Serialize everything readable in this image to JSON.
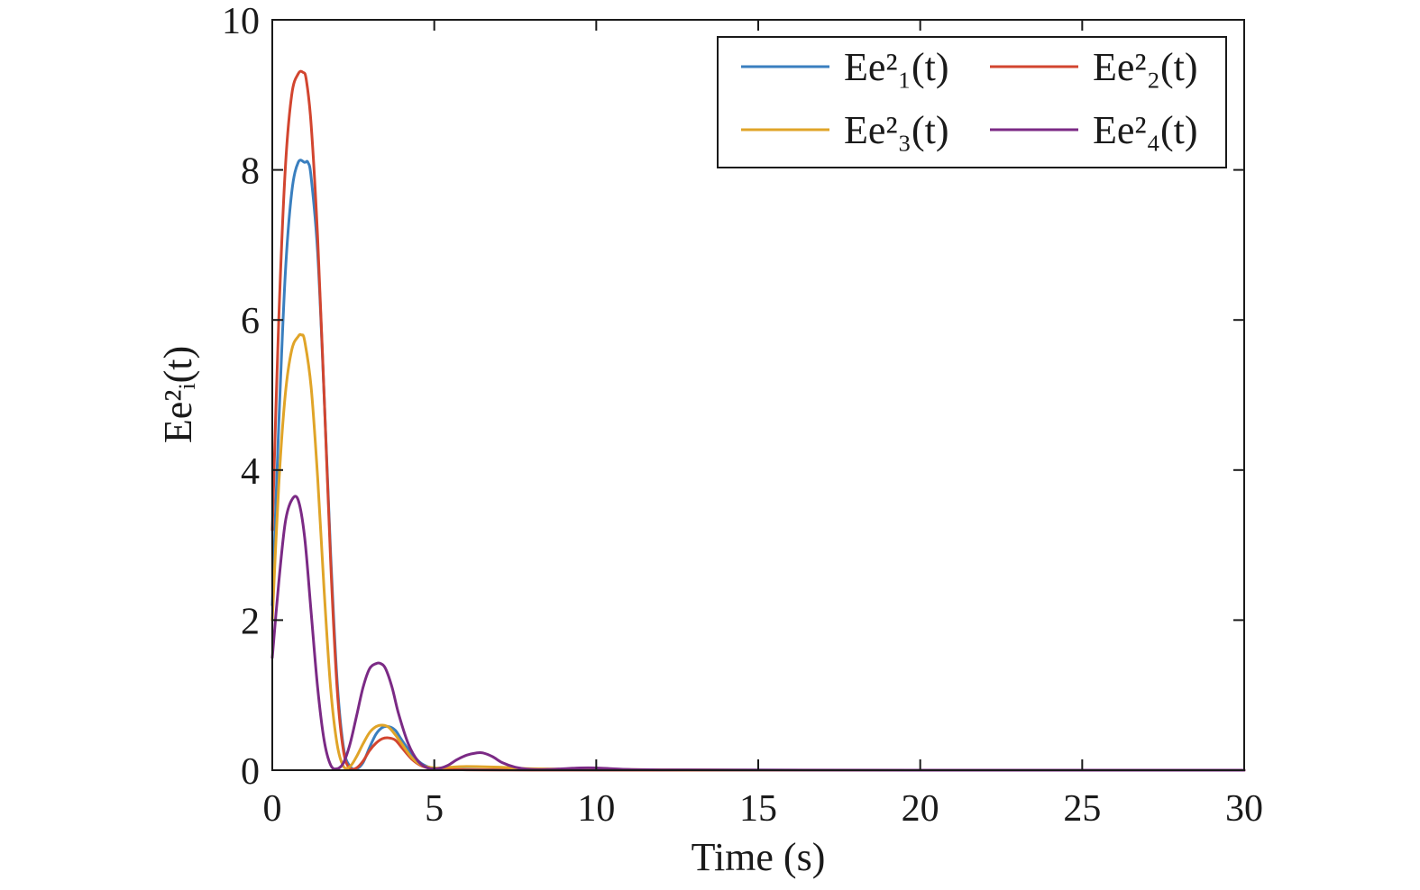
{
  "chart_data": {
    "type": "line",
    "title": "",
    "xlabel": "Time (s)",
    "ylabel": "Ee²ᵢ(t)",
    "xlim": [
      0,
      30
    ],
    "ylim": [
      0,
      10
    ],
    "xticks": [
      0,
      5,
      10,
      15,
      20,
      25,
      30
    ],
    "xtick_labels": [
      "0",
      "5",
      "10",
      "15",
      "20",
      "25",
      "30"
    ],
    "yticks": [
      0,
      2,
      4,
      6,
      8,
      10
    ],
    "ytick_labels": [
      "0",
      "2",
      "4",
      "6",
      "8",
      "10"
    ],
    "grid": false,
    "legend_position": "top-right",
    "legend_columns": 2,
    "series": [
      {
        "name": "Ee²₁(t)",
        "label_parts": {
          "base": "E",
          "var": "e",
          "sup": "2",
          "sub": "1",
          "arg": "t"
        },
        "color": "#3a7fbf",
        "x": [
          0,
          0.2,
          0.4,
          0.6,
          0.8,
          1.0,
          1.1,
          1.2,
          1.4,
          1.6,
          1.8,
          2.0,
          2.2,
          2.4,
          2.6,
          2.8,
          3.0,
          3.2,
          3.4,
          3.6,
          3.8,
          4.0,
          4.3,
          4.6,
          5.0,
          5.5,
          6.0,
          7.0,
          8.0,
          10.0,
          15.0,
          20.0,
          30.0
        ],
        "y": [
          2.2,
          4.6,
          6.6,
          7.7,
          8.1,
          8.1,
          8.1,
          7.9,
          6.9,
          5.0,
          2.9,
          1.2,
          0.3,
          0.05,
          0.02,
          0.1,
          0.3,
          0.48,
          0.57,
          0.58,
          0.53,
          0.4,
          0.22,
          0.09,
          0.02,
          0.01,
          0.01,
          0.005,
          0.003,
          0.002,
          0.001,
          0.0,
          0.0
        ]
      },
      {
        "name": "Ee²₂(t)",
        "label_parts": {
          "base": "E",
          "var": "e",
          "sup": "2",
          "sub": "2",
          "arg": "t"
        },
        "color": "#d2452f",
        "x": [
          0,
          0.2,
          0.4,
          0.6,
          0.8,
          0.95,
          1.05,
          1.2,
          1.4,
          1.6,
          1.8,
          2.0,
          2.2,
          2.4,
          2.6,
          2.8,
          3.0,
          3.2,
          3.4,
          3.6,
          3.8,
          4.0,
          4.3,
          4.6,
          5.0,
          5.5,
          6.0,
          7.0,
          8.0,
          10.0,
          15.0,
          20.0,
          30.0
        ],
        "y": [
          3.2,
          6.0,
          8.0,
          9.0,
          9.28,
          9.3,
          9.2,
          8.6,
          7.1,
          5.0,
          2.8,
          1.1,
          0.25,
          0.02,
          0.03,
          0.12,
          0.26,
          0.36,
          0.42,
          0.43,
          0.4,
          0.3,
          0.15,
          0.06,
          0.015,
          0.01,
          0.005,
          0.003,
          0.002,
          0.001,
          0.0,
          0.0,
          0.0
        ]
      },
      {
        "name": "Ee²₃(t)",
        "label_parts": {
          "base": "E",
          "var": "e",
          "sup": "2",
          "sub": "3",
          "arg": "t"
        },
        "color": "#e0a428",
        "x": [
          0,
          0.2,
          0.4,
          0.6,
          0.8,
          0.9,
          1.0,
          1.2,
          1.4,
          1.6,
          1.8,
          2.0,
          2.2,
          2.4,
          2.6,
          2.8,
          3.0,
          3.2,
          3.4,
          3.6,
          3.8,
          4.0,
          4.3,
          4.6,
          5.0,
          5.5,
          6.0,
          7.0,
          8.0,
          10.0,
          15.0,
          20.0,
          30.0
        ],
        "y": [
          2.0,
          3.8,
          5.0,
          5.6,
          5.78,
          5.8,
          5.72,
          5.1,
          3.9,
          2.4,
          1.1,
          0.35,
          0.05,
          0.05,
          0.18,
          0.35,
          0.5,
          0.58,
          0.6,
          0.57,
          0.47,
          0.35,
          0.17,
          0.07,
          0.03,
          0.04,
          0.05,
          0.04,
          0.02,
          0.01,
          0.0,
          0.0,
          0.0
        ]
      },
      {
        "name": "Ee²₄(t)",
        "label_parts": {
          "base": "E",
          "var": "e",
          "sup": "2",
          "sub": "4",
          "arg": "t"
        },
        "color": "#7b2a85",
        "x": [
          0,
          0.2,
          0.4,
          0.6,
          0.8,
          1.0,
          1.2,
          1.4,
          1.6,
          1.8,
          2.0,
          2.2,
          2.4,
          2.6,
          2.8,
          3.0,
          3.2,
          3.35,
          3.5,
          3.7,
          3.9,
          4.2,
          4.5,
          4.8,
          5.1,
          5.4,
          5.7,
          6.0,
          6.3,
          6.5,
          6.8,
          7.1,
          7.5,
          8.0,
          8.5,
          9.0,
          9.5,
          10.0,
          10.5,
          11.0,
          12.0,
          14.0,
          20.0,
          30.0
        ],
        "y": [
          1.5,
          2.5,
          3.3,
          3.6,
          3.6,
          3.1,
          2.1,
          1.1,
          0.4,
          0.07,
          0.02,
          0.1,
          0.35,
          0.72,
          1.1,
          1.35,
          1.42,
          1.42,
          1.35,
          1.1,
          0.75,
          0.35,
          0.12,
          0.03,
          0.02,
          0.06,
          0.14,
          0.2,
          0.23,
          0.23,
          0.18,
          0.1,
          0.04,
          0.01,
          0.01,
          0.02,
          0.03,
          0.03,
          0.02,
          0.01,
          0.005,
          0.003,
          0.0,
          0.0
        ]
      }
    ]
  }
}
